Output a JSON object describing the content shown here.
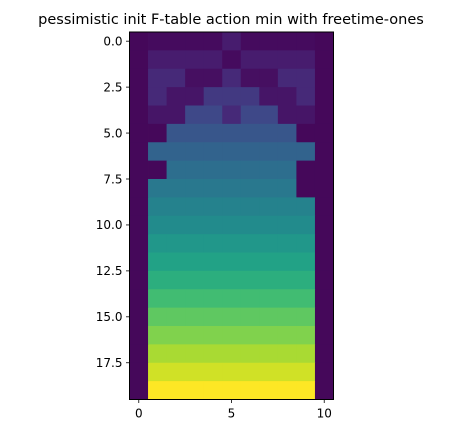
{
  "chart_data": {
    "type": "heatmap",
    "title": "pessimistic init F-table action min with freetime-ones",
    "colormap": "viridis",
    "x_range": [
      -0.5,
      10.5
    ],
    "y_range": [
      19.5,
      -0.5
    ],
    "x_ticks": [
      0,
      5,
      10
    ],
    "x_tick_labels": [
      "0",
      "5",
      "10"
    ],
    "y_ticks": [
      0.0,
      2.5,
      5.0,
      7.5,
      10.0,
      12.5,
      15.0,
      17.5
    ],
    "y_tick_labels": [
      "0.0",
      "2.5",
      "5.0",
      "7.5",
      "10.0",
      "12.5",
      "15.0",
      "17.5"
    ],
    "value_range": [
      0,
      1
    ],
    "values": [
      [
        0.02,
        0.03,
        0.03,
        0.03,
        0.03,
        0.08,
        0.03,
        0.03,
        0.03,
        0.03,
        0.02
      ],
      [
        0.02,
        0.08,
        0.08,
        0.08,
        0.08,
        0.03,
        0.08,
        0.08,
        0.08,
        0.08,
        0.02
      ],
      [
        0.02,
        0.12,
        0.12,
        0.04,
        0.04,
        0.12,
        0.04,
        0.04,
        0.12,
        0.12,
        0.02
      ],
      [
        0.02,
        0.12,
        0.06,
        0.06,
        0.17,
        0.17,
        0.17,
        0.06,
        0.06,
        0.12,
        0.02
      ],
      [
        0.02,
        0.06,
        0.06,
        0.22,
        0.22,
        0.12,
        0.22,
        0.22,
        0.06,
        0.06,
        0.02
      ],
      [
        0.02,
        0.02,
        0.27,
        0.27,
        0.27,
        0.27,
        0.27,
        0.27,
        0.27,
        0.02,
        0.02
      ],
      [
        0.02,
        0.32,
        0.32,
        0.32,
        0.32,
        0.32,
        0.32,
        0.32,
        0.32,
        0.32,
        0.02
      ],
      [
        0.02,
        0.02,
        0.36,
        0.36,
        0.36,
        0.36,
        0.36,
        0.36,
        0.36,
        0.02,
        0.02
      ],
      [
        0.02,
        0.4,
        0.4,
        0.4,
        0.4,
        0.4,
        0.4,
        0.4,
        0.4,
        0.02,
        0.02
      ],
      [
        0.02,
        0.44,
        0.44,
        0.44,
        0.44,
        0.44,
        0.44,
        0.44,
        0.44,
        0.44,
        0.02
      ],
      [
        0.02,
        0.48,
        0.48,
        0.48,
        0.48,
        0.48,
        0.48,
        0.48,
        0.48,
        0.48,
        0.02
      ],
      [
        0.02,
        0.53,
        0.53,
        0.53,
        0.53,
        0.53,
        0.53,
        0.53,
        0.53,
        0.53,
        0.02
      ],
      [
        0.02,
        0.58,
        0.58,
        0.58,
        0.58,
        0.58,
        0.58,
        0.58,
        0.58,
        0.58,
        0.02
      ],
      [
        0.02,
        0.63,
        0.63,
        0.63,
        0.63,
        0.63,
        0.63,
        0.63,
        0.63,
        0.63,
        0.02
      ],
      [
        0.02,
        0.69,
        0.69,
        0.69,
        0.69,
        0.69,
        0.69,
        0.69,
        0.69,
        0.69,
        0.02
      ],
      [
        0.02,
        0.75,
        0.75,
        0.75,
        0.75,
        0.75,
        0.75,
        0.75,
        0.75,
        0.75,
        0.02
      ],
      [
        0.02,
        0.81,
        0.81,
        0.81,
        0.81,
        0.81,
        0.81,
        0.81,
        0.81,
        0.81,
        0.02
      ],
      [
        0.02,
        0.87,
        0.87,
        0.87,
        0.87,
        0.87,
        0.87,
        0.87,
        0.87,
        0.87,
        0.02
      ],
      [
        0.02,
        0.93,
        0.93,
        0.93,
        0.93,
        0.93,
        0.93,
        0.93,
        0.93,
        0.93,
        0.02
      ],
      [
        0.02,
        1.0,
        1.0,
        1.0,
        1.0,
        1.0,
        1.0,
        1.0,
        1.0,
        1.0,
        0.02
      ]
    ],
    "xlabel": "",
    "ylabel": "",
    "grid": false,
    "legend": "none"
  }
}
